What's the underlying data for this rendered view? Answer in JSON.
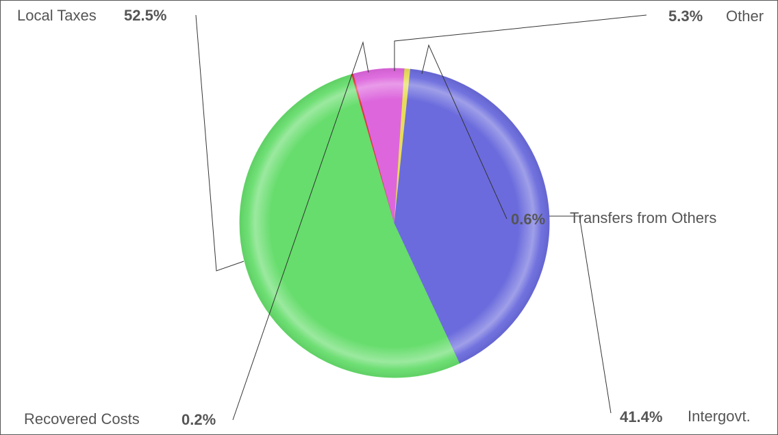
{
  "chart_data": {
    "type": "pie",
    "slices": [
      {
        "name": "Local Taxes",
        "value": 52.5,
        "label": "52.5%",
        "color": "#66dd6c"
      },
      {
        "name": "Recovered Costs",
        "value": 0.2,
        "label": "0.2%",
        "color": "#e0383e"
      },
      {
        "name": "Other",
        "value": 5.3,
        "label": "5.3%",
        "color": "#dd66dd"
      },
      {
        "name": "Transfers from Others",
        "value": 0.6,
        "label": "0.6%",
        "color": "#e6dc5a"
      },
      {
        "name": "Intergovt.",
        "value": 41.4,
        "label": "41.4%",
        "color": "#6b6bdd"
      }
    ]
  },
  "labels": {
    "local_taxes": {
      "name": "Local Taxes",
      "pct": "52.5%"
    },
    "other": {
      "name": "Other",
      "pct": "5.3%"
    },
    "transfers": {
      "name": "Transfers from Others",
      "pct": "0.6%"
    },
    "recovered": {
      "name": "Recovered Costs",
      "pct": "0.2%"
    },
    "intergovt": {
      "name": "Intergovt.",
      "pct": "41.4%"
    }
  }
}
